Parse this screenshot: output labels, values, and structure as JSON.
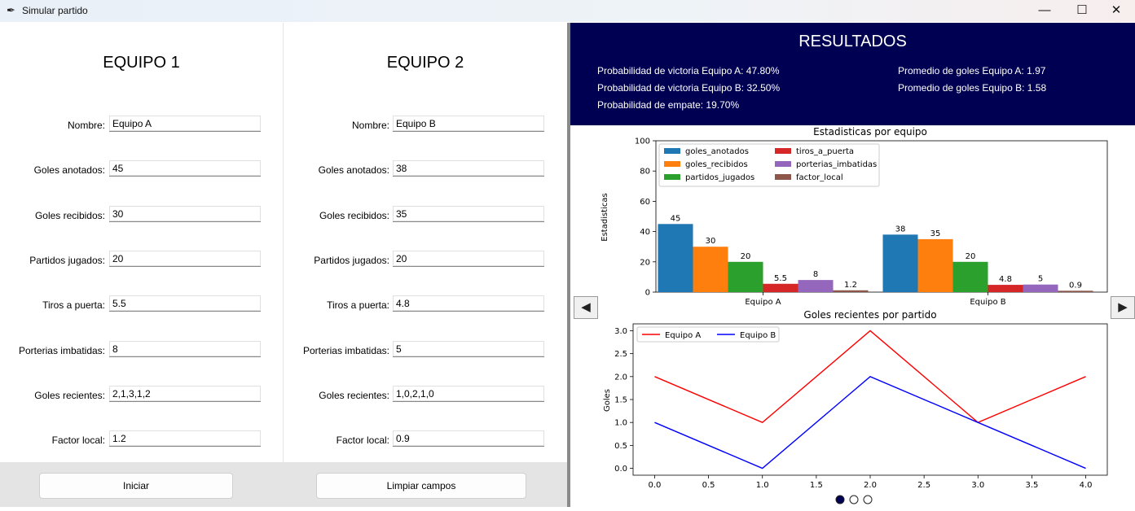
{
  "window": {
    "title": "Simular partido",
    "minimize": "—",
    "maximize": "☐",
    "close": "✕"
  },
  "team1": {
    "heading": "EQUIPO 1",
    "fields": [
      {
        "label": "Nombre:",
        "value": "Equipo A"
      },
      {
        "label": "Goles anotados:",
        "value": "45"
      },
      {
        "label": "Goles recibidos:",
        "value": "30"
      },
      {
        "label": "Partidos jugados:",
        "value": "20"
      },
      {
        "label": "Tiros a puerta:",
        "value": "5.5"
      },
      {
        "label": "Porterias imbatidas:",
        "value": "8"
      },
      {
        "label": "Goles recientes:",
        "value": "2,1,3,1,2"
      },
      {
        "label": "Factor local:",
        "value": "1.2"
      }
    ]
  },
  "team2": {
    "heading": "EQUIPO 2",
    "fields": [
      {
        "label": "Nombre:",
        "value": "Equipo B"
      },
      {
        "label": "Goles anotados:",
        "value": "38"
      },
      {
        "label": "Goles recibidos:",
        "value": "35"
      },
      {
        "label": "Partidos jugados:",
        "value": "20"
      },
      {
        "label": "Tiros a puerta:",
        "value": "4.8"
      },
      {
        "label": "Porterias imbatidas:",
        "value": "5"
      },
      {
        "label": "Goles recientes:",
        "value": "1,0,2,1,0"
      },
      {
        "label": "Factor local:",
        "value": "0.9"
      }
    ]
  },
  "buttons": {
    "start": "Iniciar",
    "clear": "Limpiar campos"
  },
  "results": {
    "title": "RESULTADOS",
    "prob_a": "Probabilidad de victoria Equipo A: 47.80%",
    "prob_b": "Probabilidad de victoria Equipo B: 32.50%",
    "prob_draw": "Probabilidad de empate: 19.70%",
    "avg_a": "Promedio de goles Equipo A: 1.97",
    "avg_b": "Promedio de goles Equipo B: 1.58"
  },
  "nav": {
    "prev": "◀",
    "next": "▶",
    "pages": 3,
    "current_page": 1
  },
  "chart_data": [
    {
      "type": "bar",
      "title": "Estadisticas por equipo",
      "ylabel": "Estadisticas",
      "xlabel": "",
      "categories": [
        "Equipo A",
        "Equipo B"
      ],
      "ylim": [
        0,
        100
      ],
      "yticks": [
        0,
        20,
        40,
        60,
        80,
        100
      ],
      "legend_position": "top-left",
      "series": [
        {
          "name": "goles_anotados",
          "color": "#1f77b4",
          "values": [
            45,
            38
          ],
          "labels": [
            "45",
            "38"
          ]
        },
        {
          "name": "goles_recibidos",
          "color": "#ff7f0e",
          "values": [
            30,
            35
          ],
          "labels": [
            "30",
            "35"
          ]
        },
        {
          "name": "partidos_jugados",
          "color": "#2ca02c",
          "values": [
            20,
            20
          ],
          "labels": [
            "20",
            "20"
          ]
        },
        {
          "name": "tiros_a_puerta",
          "color": "#d62728",
          "values": [
            5.5,
            4.8
          ],
          "labels": [
            "5.5",
            "4.8"
          ]
        },
        {
          "name": "porterias_imbatidas",
          "color": "#9467bd",
          "values": [
            8,
            5
          ],
          "labels": [
            "8",
            "5"
          ]
        },
        {
          "name": "factor_local",
          "color": "#8c564b",
          "values": [
            1.2,
            0.9
          ],
          "labels": [
            "1.2",
            "0.9"
          ]
        }
      ]
    },
    {
      "type": "line",
      "title": "Goles recientes por partido",
      "ylabel": "Goles",
      "xlabel": "",
      "x": [
        0,
        1,
        2,
        3,
        4
      ],
      "xlim": [
        -0.2,
        4.2
      ],
      "ylim": [
        -0.15,
        3.15
      ],
      "xticks": [
        "0.0",
        "0.5",
        "1.0",
        "1.5",
        "2.0",
        "2.5",
        "3.0",
        "3.5",
        "4.0"
      ],
      "yticks": [
        "0.0",
        "0.5",
        "1.0",
        "1.5",
        "2.0",
        "2.5",
        "3.0"
      ],
      "legend_position": "top-left",
      "series": [
        {
          "name": "Equipo A",
          "color": "#ff0000",
          "values": [
            2,
            1,
            3,
            1,
            2
          ]
        },
        {
          "name": "Equipo B",
          "color": "#0000ff",
          "values": [
            1,
            0,
            2,
            1,
            0
          ]
        }
      ]
    }
  ]
}
